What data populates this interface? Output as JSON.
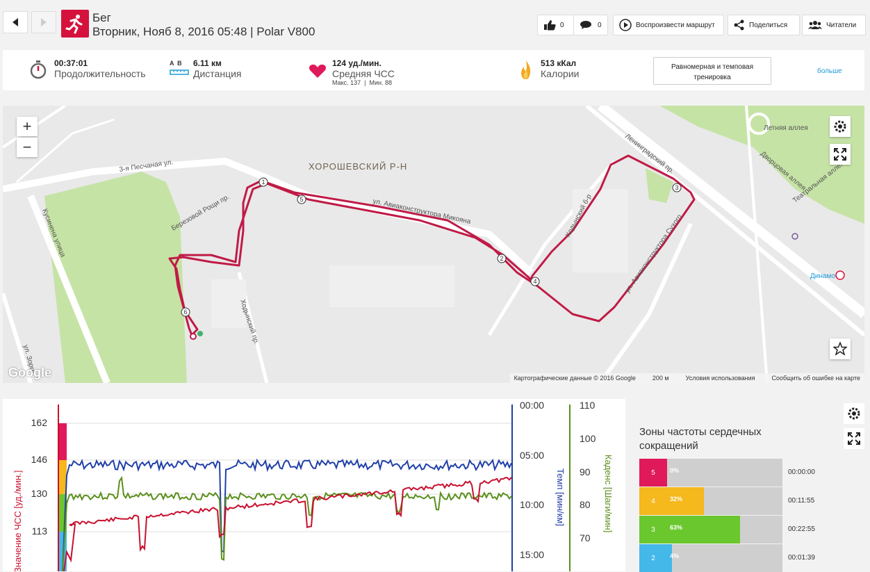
{
  "header": {
    "sport": "Бег",
    "subtitle": "Вторник, Нояб 8, 2016 05:48 | Polar V800",
    "likes": "0",
    "comments": "0",
    "replay_label": "Воспроизвести маршрут",
    "share_label": "Поделиться",
    "readers_label": "Читатели"
  },
  "summary": {
    "duration_value": "00:37:01",
    "duration_label": "Продолжительность",
    "distance_ab": "A  B",
    "distance_value": "6.11 км",
    "distance_label": "Дистанция",
    "hr_value": "124 уд./мин.",
    "hr_label": "Средняя ЧСС",
    "hr_minmax": "Макс. 137  |  Мин. 88",
    "calories_value": "513 кКал",
    "calories_label": "Калории",
    "training_label": "Равномерная и темповая тренировка",
    "more_label": "больше"
  },
  "map": {
    "district": "ХОРОШЕВСКИЙ Р-Н",
    "streets": [
      "3-я Песчаная ул.",
      "ул. Авиаконструктора Микояна",
      "Ленинградский пр.",
      "Летняя аллея",
      "Дворцовая аллея",
      "Театральная аллея",
      "Ходынский б-р",
      "Березовой Рощи пр.",
      "Кусинена улица",
      "ул. Зорге",
      "Динамо",
      "ул. Авиаконструктора Сухого",
      "Ходынский пр."
    ],
    "markers": [
      "1",
      "2",
      "3",
      "4",
      "5",
      "6"
    ],
    "attribution": [
      "Картографические данные © 2016 Google",
      "200 м",
      "Условия использования",
      "Сообщить об ошибке на карте"
    ],
    "google_logo": "Google"
  },
  "chart_data": {
    "type": "line",
    "y_left_label": "Значение ЧСС [уд./мин.]",
    "y_left_ticks": [
      "162",
      "146",
      "130",
      "113"
    ],
    "y_right1_label": "Темп [мин/км]",
    "y_right1_ticks": [
      "00:00",
      "05:00",
      "10:00",
      "15:00"
    ],
    "y_right2_label": "Каденс [Шаги/мин]",
    "y_right2_ticks": [
      "110",
      "100",
      "90",
      "80",
      "70"
    ],
    "series": [
      {
        "name": "ЧСС",
        "color": "#c8102e"
      },
      {
        "name": "Темп",
        "color": "#1f3fa8"
      },
      {
        "name": "Каденс",
        "color": "#5a8f1a"
      }
    ]
  },
  "zones": {
    "title": "Зоны частоты сердечных сокращений",
    "items": [
      {
        "zone": "5",
        "pct": "0%",
        "value": 0.0,
        "time": "00:00:00",
        "color": "#e0195a"
      },
      {
        "zone": "4",
        "pct": "32%",
        "value": 0.32,
        "time": "00:11:55",
        "color": "#f5b81d"
      },
      {
        "zone": "3",
        "pct": "63%",
        "value": 0.63,
        "time": "00:22:55",
        "color": "#6ac72e"
      },
      {
        "zone": "2",
        "pct": "4%",
        "value": 0.04,
        "time": "00:01:39",
        "color": "#44b8e8"
      }
    ]
  }
}
